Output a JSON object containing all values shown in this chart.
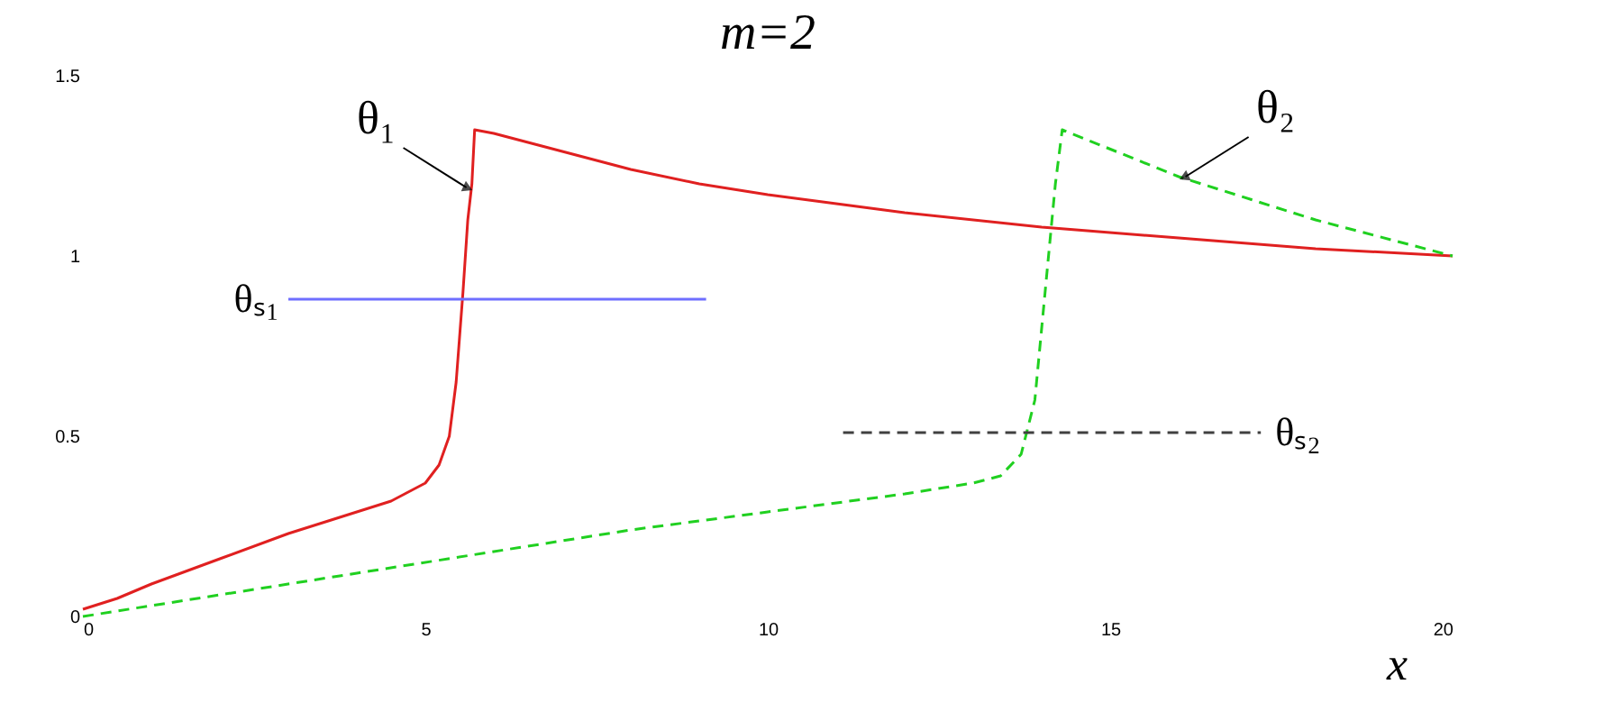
{
  "chart_data": {
    "type": "line",
    "title": "m=2",
    "xlabel": "x",
    "xlim": [
      0,
      20
    ],
    "ylim": [
      0,
      1.5
    ],
    "xticks": [
      0,
      5,
      10,
      15,
      20
    ],
    "yticks": [
      0,
      0.5,
      1,
      1.5
    ],
    "grid": false,
    "series": [
      {
        "color": "#e02020",
        "line_style": "solid",
        "x": [
          0,
          0.5,
          1,
          2,
          3,
          4,
          4.5,
          4.8,
          5.0,
          5.2,
          5.35,
          5.45,
          5.55,
          5.62,
          5.68,
          5.72,
          6,
          7,
          8,
          9,
          10,
          12,
          14,
          16,
          18,
          20
        ],
        "values": [
          0.02,
          0.05,
          0.09,
          0.16,
          0.23,
          0.29,
          0.32,
          0.35,
          0.37,
          0.42,
          0.5,
          0.65,
          0.9,
          1.1,
          1.2,
          1.35,
          1.34,
          1.29,
          1.24,
          1.2,
          1.17,
          1.12,
          1.08,
          1.05,
          1.02,
          1.0
        ]
      },
      {
        "color": "#20d020",
        "line_style": "dashed",
        "x": [
          0,
          2,
          4,
          6,
          8,
          10,
          12,
          13,
          13.4,
          13.7,
          13.9,
          14.0,
          14.1,
          14.2,
          14.3,
          16,
          18,
          20
        ],
        "values": [
          0,
          0.06,
          0.12,
          0.18,
          0.24,
          0.29,
          0.34,
          0.37,
          0.39,
          0.45,
          0.6,
          0.8,
          1.0,
          1.2,
          1.35,
          1.22,
          1.1,
          1.0
        ]
      },
      {
        "name": "θₛ₁",
        "color": "#6f6fff",
        "line_style": "solid",
        "x": [
          3,
          9.1
        ],
        "values": [
          0.88,
          0.88
        ]
      },
      {
        "name": "θₛ₂",
        "color": "#404040",
        "line_style": "dashed",
        "x": [
          11.1,
          17.2
        ],
        "values": [
          0.51,
          0.51
        ]
      }
    ],
    "annotations": [
      {
        "text": "θ₁",
        "x": 5.6,
        "y": 1.19
      },
      {
        "text": "θ₂",
        "x": 16.1,
        "y": 1.22
      }
    ]
  }
}
